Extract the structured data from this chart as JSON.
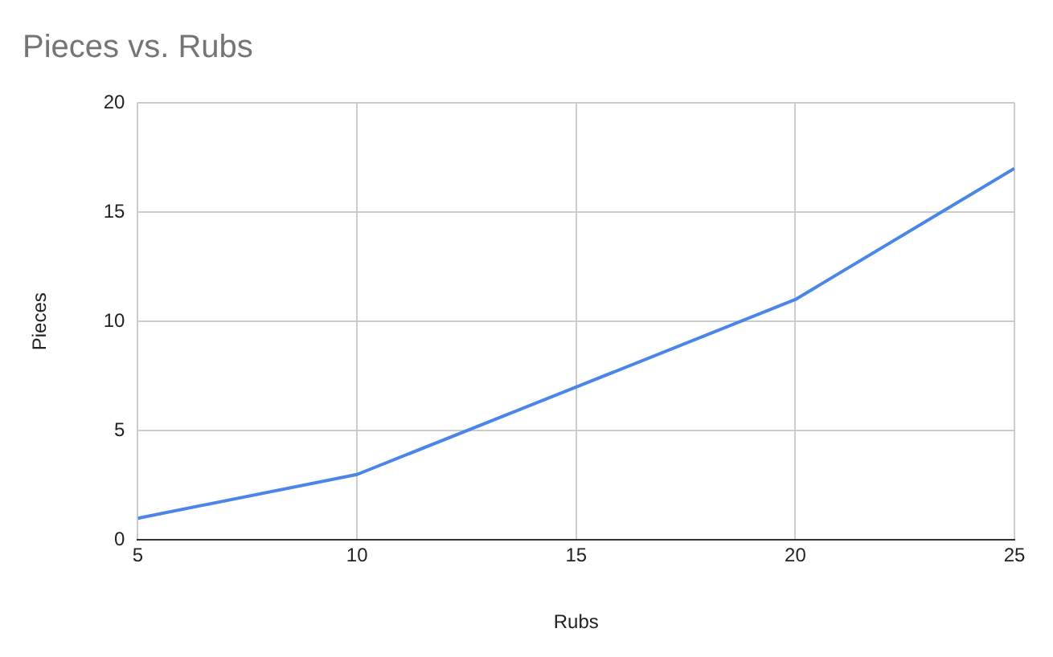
{
  "chart_data": {
    "type": "line",
    "title": "Pieces vs. Rubs",
    "xlabel": "Rubs",
    "ylabel": "Pieces",
    "x": [
      5,
      10,
      15,
      20,
      25
    ],
    "series": [
      {
        "color": "#4a86e8",
        "values": [
          1,
          3,
          7,
          11,
          17
        ]
      }
    ],
    "xlim": [
      5,
      25
    ],
    "xticks": [
      5,
      10,
      15,
      20,
      25
    ],
    "ylim": [
      0,
      20
    ],
    "yticks": [
      0,
      5,
      10,
      15,
      20
    ],
    "grid": true,
    "legend": false,
    "marker": "none",
    "line_style": "solid"
  }
}
